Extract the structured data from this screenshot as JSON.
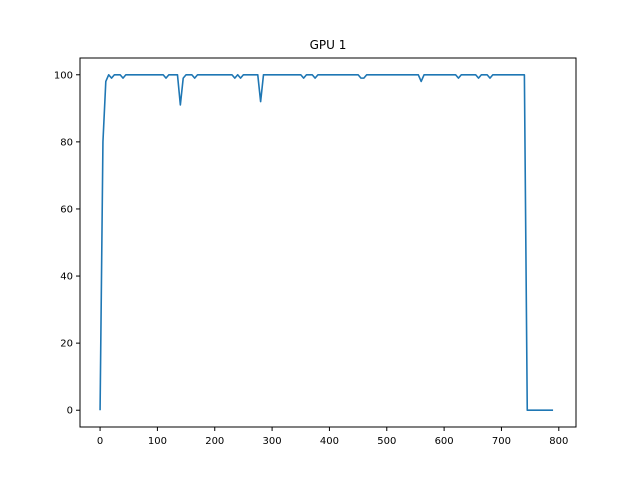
{
  "chart_data": {
    "type": "line",
    "title": "GPU 1",
    "xlabel": "",
    "ylabel": "",
    "xlim": [
      -35,
      830
    ],
    "ylim": [
      -5,
      105
    ],
    "xticks": [
      0,
      100,
      200,
      300,
      400,
      500,
      600,
      700,
      800
    ],
    "yticks": [
      0,
      20,
      40,
      60,
      80,
      100
    ],
    "grid": false,
    "legend": "none",
    "series": [
      {
        "color": "#1f77b4",
        "x": [
          0,
          5,
          10,
          15,
          20,
          25,
          30,
          35,
          40,
          45,
          50,
          55,
          60,
          65,
          70,
          75,
          80,
          85,
          90,
          95,
          100,
          105,
          110,
          115,
          120,
          125,
          130,
          135,
          140,
          145,
          150,
          155,
          160,
          165,
          170,
          175,
          180,
          185,
          190,
          195,
          200,
          205,
          210,
          215,
          220,
          225,
          230,
          235,
          240,
          245,
          250,
          255,
          260,
          265,
          270,
          275,
          280,
          285,
          290,
          295,
          300,
          305,
          310,
          315,
          320,
          325,
          330,
          335,
          340,
          345,
          350,
          355,
          360,
          365,
          370,
          375,
          380,
          385,
          390,
          395,
          400,
          405,
          410,
          415,
          420,
          425,
          430,
          435,
          440,
          445,
          450,
          455,
          460,
          465,
          470,
          475,
          480,
          485,
          490,
          495,
          500,
          505,
          510,
          515,
          520,
          525,
          530,
          535,
          540,
          545,
          550,
          555,
          560,
          565,
          570,
          575,
          580,
          585,
          590,
          595,
          600,
          605,
          610,
          615,
          620,
          625,
          630,
          635,
          640,
          645,
          650,
          655,
          660,
          665,
          670,
          675,
          680,
          685,
          690,
          695,
          700,
          705,
          710,
          715,
          720,
          725,
          730,
          735,
          740,
          745,
          750,
          755,
          760,
          765,
          770,
          775,
          780,
          785,
          790
        ],
        "y": [
          0,
          80,
          98,
          100,
          99,
          100,
          100,
          100,
          99,
          100,
          100,
          100,
          100,
          100,
          100,
          100,
          100,
          100,
          100,
          100,
          100,
          100,
          100,
          99,
          100,
          100,
          100,
          100,
          91,
          99,
          100,
          100,
          100,
          99,
          100,
          100,
          100,
          100,
          100,
          100,
          100,
          100,
          100,
          100,
          100,
          100,
          100,
          99,
          100,
          99,
          100,
          100,
          100,
          100,
          100,
          100,
          92,
          100,
          100,
          100,
          100,
          100,
          100,
          100,
          100,
          100,
          100,
          100,
          100,
          100,
          100,
          99,
          100,
          100,
          100,
          99,
          100,
          100,
          100,
          100,
          100,
          100,
          100,
          100,
          100,
          100,
          100,
          100,
          100,
          100,
          100,
          99,
          99,
          100,
          100,
          100,
          100,
          100,
          100,
          100,
          100,
          100,
          100,
          100,
          100,
          100,
          100,
          100,
          100,
          100,
          100,
          100,
          98,
          100,
          100,
          100,
          100,
          100,
          100,
          100,
          100,
          100,
          100,
          100,
          100,
          99,
          100,
          100,
          100,
          100,
          100,
          100,
          99,
          100,
          100,
          100,
          99,
          100,
          100,
          100,
          100,
          100,
          100,
          100,
          100,
          100,
          100,
          100,
          100,
          0,
          0,
          0,
          0,
          0,
          0,
          0,
          0,
          0,
          0
        ]
      }
    ]
  }
}
